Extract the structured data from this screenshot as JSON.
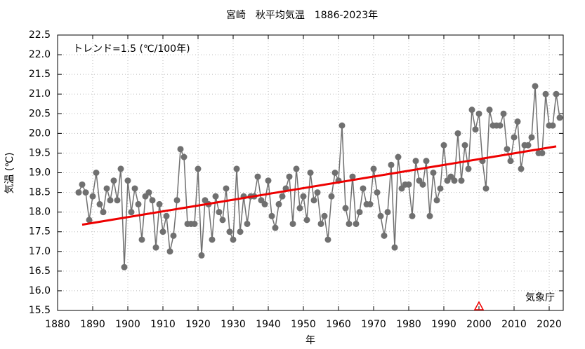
{
  "chart_data": {
    "type": "line",
    "title": "宮崎　秋平均気温　1886-2023年",
    "xlabel": "年",
    "ylabel": "気温 (℃)",
    "annotation": "トレンド=1.5 (℃/100年)",
    "credit": "気象庁",
    "xlim": [
      1880,
      2024
    ],
    "ylim": [
      15.5,
      22.5
    ],
    "xticks": [
      1880,
      1890,
      1900,
      1910,
      1920,
      1930,
      1940,
      1950,
      1960,
      1970,
      1980,
      1990,
      2000,
      2010,
      2020
    ],
    "yticks": [
      15.5,
      {
        "value": 16,
        "label": "16.0"
      },
      16.5,
      {
        "value": 17,
        "label": "17.0"
      },
      17.5,
      {
        "value": 18,
        "label": "18.0"
      },
      18.5,
      {
        "value": 19,
        "label": "19.0"
      },
      19.5,
      {
        "value": 20,
        "label": "20.0"
      },
      20.5,
      {
        "value": 21,
        "label": "21.0"
      },
      21.5,
      {
        "value": 22,
        "label": "22.0"
      },
      22.5
    ],
    "grid": true,
    "x": [
      1886,
      1887,
      1888,
      1889,
      1890,
      1891,
      1892,
      1893,
      1894,
      1895,
      1896,
      1897,
      1898,
      1899,
      1900,
      1901,
      1902,
      1903,
      1904,
      1905,
      1906,
      1907,
      1908,
      1909,
      1910,
      1911,
      1912,
      1913,
      1914,
      1915,
      1916,
      1917,
      1918,
      1919,
      1920,
      1921,
      1922,
      1923,
      1924,
      1925,
      1926,
      1927,
      1928,
      1929,
      1930,
      1931,
      1932,
      1933,
      1934,
      1935,
      1936,
      1937,
      1938,
      1939,
      1940,
      1941,
      1942,
      1943,
      1944,
      1945,
      1946,
      1947,
      1948,
      1949,
      1950,
      1951,
      1952,
      1953,
      1954,
      1955,
      1956,
      1957,
      1958,
      1959,
      1960,
      1961,
      1962,
      1963,
      1964,
      1965,
      1966,
      1967,
      1968,
      1969,
      1970,
      1971,
      1972,
      1973,
      1974,
      1975,
      1976,
      1977,
      1978,
      1979,
      1980,
      1981,
      1982,
      1983,
      1984,
      1985,
      1986,
      1987,
      1988,
      1989,
      1990,
      1991,
      1992,
      1993,
      1994,
      1995,
      1996,
      1997,
      1998,
      1999,
      2000,
      2001,
      2002,
      2003,
      2004,
      2005,
      2006,
      2007,
      2008,
      2009,
      2010,
      2011,
      2012,
      2013,
      2014,
      2015,
      2016,
      2017,
      2018,
      2019,
      2020,
      2021,
      2022,
      2023
    ],
    "series": [
      {
        "color": "#707070",
        "values": [
          18.5,
          18.7,
          18.5,
          17.8,
          18.4,
          19.0,
          18.2,
          18.0,
          18.6,
          18.3,
          18.8,
          18.3,
          19.1,
          16.6,
          18.8,
          18.0,
          18.6,
          18.2,
          17.3,
          18.4,
          18.5,
          18.3,
          17.1,
          18.2,
          17.5,
          17.9,
          17.0,
          17.4,
          18.3,
          19.6,
          19.4,
          17.7,
          17.7,
          17.7,
          19.1,
          16.9,
          18.3,
          18.2,
          17.3,
          18.4,
          18.0,
          17.8,
          18.6,
          17.5,
          17.3,
          19.1,
          17.5,
          18.4,
          17.7,
          18.4,
          18.4,
          18.9,
          18.3,
          18.2,
          18.8,
          17.9,
          17.6,
          18.2,
          18.4,
          18.6,
          18.9,
          17.7,
          19.1,
          18.1,
          18.4,
          17.8,
          19.0,
          18.3,
          18.5,
          17.7,
          17.9,
          17.3,
          18.4,
          19.0,
          18.8,
          20.2,
          18.1,
          17.7,
          18.9,
          17.7,
          18.0,
          18.6,
          18.2,
          18.2,
          19.1,
          18.5,
          17.9,
          17.4,
          18.0,
          19.2,
          17.1,
          19.4,
          18.6,
          18.7,
          18.7,
          17.9,
          19.3,
          18.8,
          18.7,
          19.3,
          17.9,
          19.0,
          18.3,
          18.6,
          19.7,
          18.8,
          18.9,
          18.8,
          20.0,
          18.8,
          19.7,
          19.1,
          20.6,
          20.1,
          20.5,
          19.3,
          18.6,
          20.6,
          20.2,
          20.2,
          20.2,
          20.5,
          19.6,
          19.3,
          19.9,
          20.3,
          19.1,
          19.7,
          19.7,
          19.9,
          21.2,
          19.5,
          19.5,
          21.0,
          20.2,
          20.2,
          21.0,
          20.4
        ]
      }
    ],
    "trend": {
      "color": "#ee0000",
      "x": [
        1887,
        2022
      ],
      "values": [
        17.68,
        19.67
      ]
    },
    "station_change_x": [
      2000
    ],
    "station_change_color": "#ee0000"
  }
}
